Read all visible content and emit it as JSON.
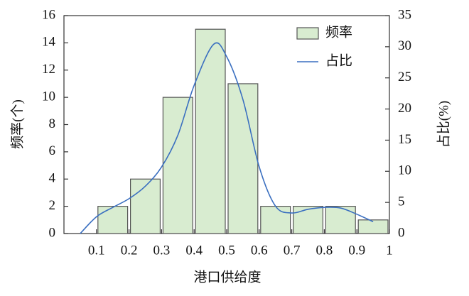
{
  "chart_data": {
    "type": "histogram",
    "xlabel": "港口供给度",
    "ylabel": "频率(个)",
    "y2label": "占比(%)",
    "bins": [
      0,
      0.1,
      0.2,
      0.3,
      0.4,
      0.5,
      0.6,
      0.7,
      0.8,
      0.9,
      1
    ],
    "series": [
      {
        "name": "频率",
        "color": "#d8ecd0",
        "values": [
          0,
          2,
          4,
          10,
          15,
          11,
          2,
          2,
          2,
          1
        ]
      },
      {
        "name": "占比",
        "color": "#3a6fc0",
        "axis": "y2",
        "x": [
          0.05,
          0.1,
          0.15,
          0.2,
          0.25,
          0.3,
          0.35,
          0.4,
          0.46,
          0.5,
          0.55,
          0.6,
          0.65,
          0.7,
          0.75,
          0.8,
          0.85,
          0.9,
          0.95
        ],
        "values": [
          0,
          2.7,
          4.2,
          5.6,
          7.6,
          10.7,
          15.8,
          23.8,
          30.4,
          28.4,
          21.5,
          10.7,
          4.4,
          3.3,
          3.9,
          4.2,
          4.1,
          3.1,
          1.9
        ]
      }
    ],
    "xlim": [
      0,
      1
    ],
    "xticks": [
      0.1,
      0.2,
      0.3,
      0.4,
      0.5,
      0.6,
      0.7,
      0.8,
      0.9,
      1
    ],
    "ylim": [
      0,
      16
    ],
    "yticks": [
      0,
      2,
      4,
      6,
      8,
      10,
      12,
      14,
      16
    ],
    "y2lim": [
      0,
      35
    ],
    "y2ticks": [
      0,
      5,
      10,
      15,
      20,
      25,
      30,
      35
    ],
    "legend": "upper right"
  }
}
